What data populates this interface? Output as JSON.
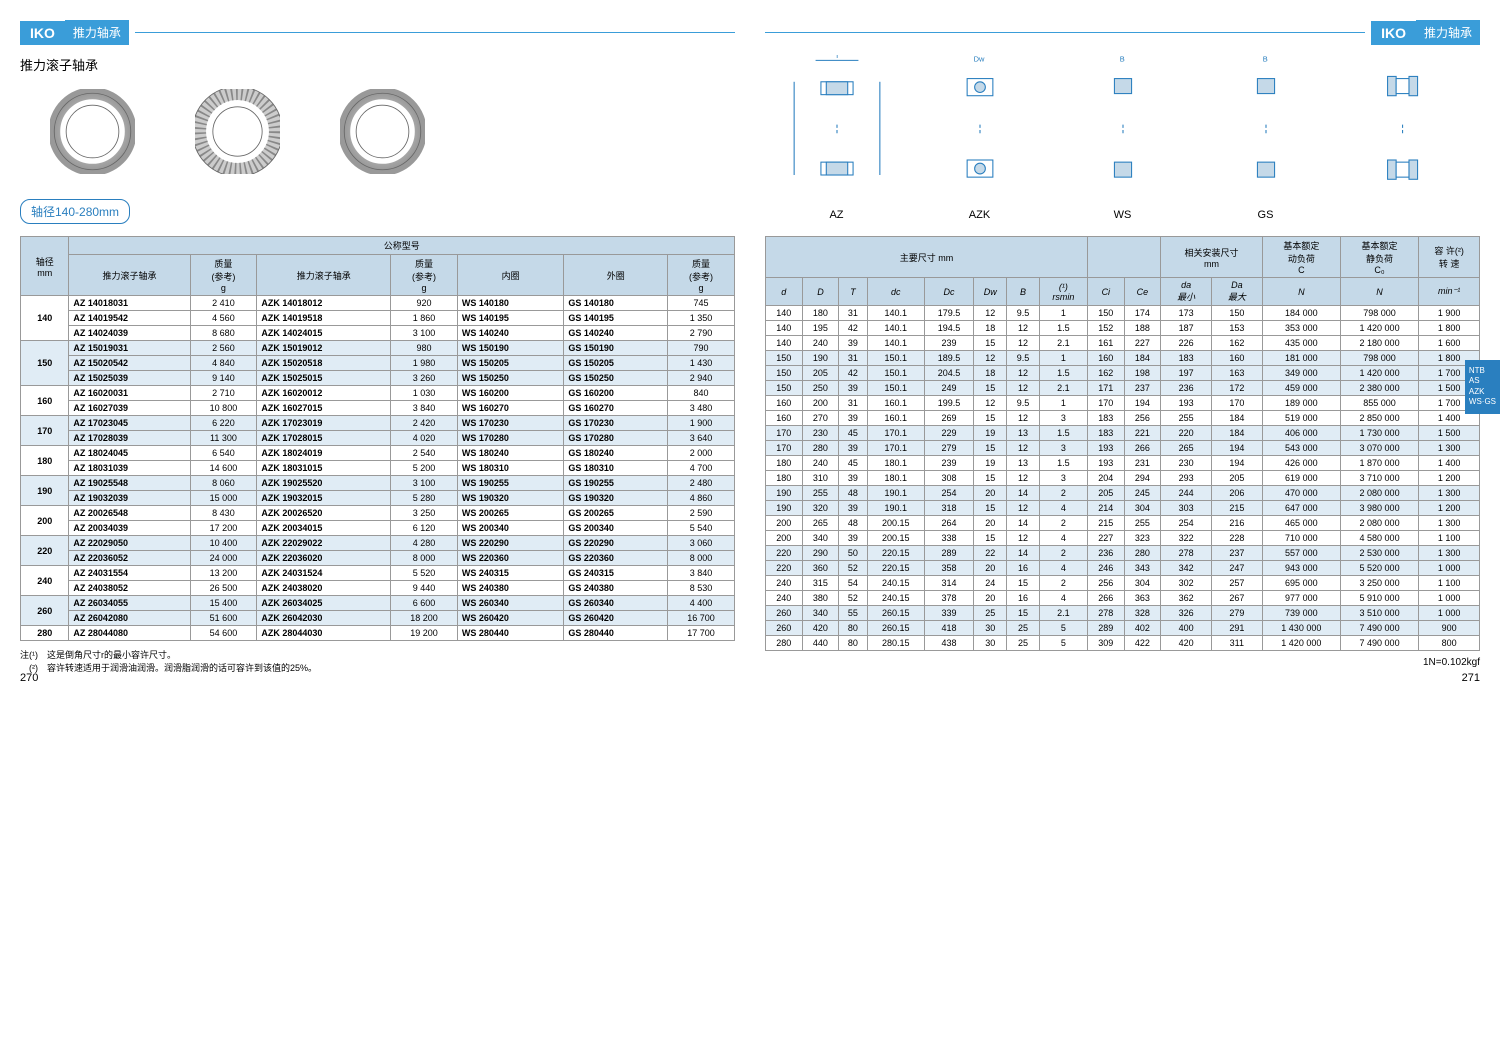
{
  "brand": "IKO",
  "header_title": "推力轴承",
  "left_subtitle": "推力滚子轴承",
  "shaft_range_label": "轴径140-280mm",
  "left_table": {
    "header_top": "公称型号",
    "columns": [
      "轴径\nmm",
      "推力滚子轴承",
      "质量\n(参考)\ng",
      "推力滚子轴承",
      "质量\n(参考)\ng",
      "内圈",
      "外圈",
      "质量\n(参考)\ng"
    ],
    "groups": [
      {
        "shaft": "140",
        "rows": [
          [
            "AZ 14018031",
            "2 410",
            "AZK 14018012",
            "920",
            "WS 140180",
            "GS 140180",
            "745"
          ],
          [
            "AZ 14019542",
            "4 560",
            "AZK 14019518",
            "1 860",
            "WS 140195",
            "GS 140195",
            "1 350"
          ],
          [
            "AZ 14024039",
            "8 680",
            "AZK 14024015",
            "3 100",
            "WS 140240",
            "GS 140240",
            "2 790"
          ]
        ]
      },
      {
        "shaft": "150",
        "rows": [
          [
            "AZ 15019031",
            "2 560",
            "AZK 15019012",
            "980",
            "WS 150190",
            "GS 150190",
            "790"
          ],
          [
            "AZ 15020542",
            "4 840",
            "AZK 15020518",
            "1 980",
            "WS 150205",
            "GS 150205",
            "1 430"
          ],
          [
            "AZ 15025039",
            "9 140",
            "AZK 15025015",
            "3 260",
            "WS 150250",
            "GS 150250",
            "2 940"
          ]
        ]
      },
      {
        "shaft": "160",
        "rows": [
          [
            "AZ 16020031",
            "2 710",
            "AZK 16020012",
            "1 030",
            "WS 160200",
            "GS 160200",
            "840"
          ],
          [
            "AZ 16027039",
            "10 800",
            "AZK 16027015",
            "3 840",
            "WS 160270",
            "GS 160270",
            "3 480"
          ]
        ]
      },
      {
        "shaft": "170",
        "rows": [
          [
            "AZ 17023045",
            "6 220",
            "AZK 17023019",
            "2 420",
            "WS 170230",
            "GS 170230",
            "1 900"
          ],
          [
            "AZ 17028039",
            "11 300",
            "AZK 17028015",
            "4 020",
            "WS 170280",
            "GS 170280",
            "3 640"
          ]
        ]
      },
      {
        "shaft": "180",
        "rows": [
          [
            "AZ 18024045",
            "6 540",
            "AZK 18024019",
            "2 540",
            "WS 180240",
            "GS 180240",
            "2 000"
          ],
          [
            "AZ 18031039",
            "14 600",
            "AZK 18031015",
            "5 200",
            "WS 180310",
            "GS 180310",
            "4 700"
          ]
        ]
      },
      {
        "shaft": "190",
        "rows": [
          [
            "AZ 19025548",
            "8 060",
            "AZK 19025520",
            "3 100",
            "WS 190255",
            "GS 190255",
            "2 480"
          ],
          [
            "AZ 19032039",
            "15 000",
            "AZK 19032015",
            "5 280",
            "WS 190320",
            "GS 190320",
            "4 860"
          ]
        ]
      },
      {
        "shaft": "200",
        "rows": [
          [
            "AZ 20026548",
            "8 430",
            "AZK 20026520",
            "3 250",
            "WS 200265",
            "GS 200265",
            "2 590"
          ],
          [
            "AZ 20034039",
            "17 200",
            "AZK 20034015",
            "6 120",
            "WS 200340",
            "GS 200340",
            "5 540"
          ]
        ]
      },
      {
        "shaft": "220",
        "rows": [
          [
            "AZ 22029050",
            "10 400",
            "AZK 22029022",
            "4 280",
            "WS 220290",
            "GS 220290",
            "3 060"
          ],
          [
            "AZ 22036052",
            "24 000",
            "AZK 22036020",
            "8 000",
            "WS 220360",
            "GS 220360",
            "8 000"
          ]
        ]
      },
      {
        "shaft": "240",
        "rows": [
          [
            "AZ 24031554",
            "13 200",
            "AZK 24031524",
            "5 520",
            "WS 240315",
            "GS 240315",
            "3 840"
          ],
          [
            "AZ 24038052",
            "26 500",
            "AZK 24038020",
            "9 440",
            "WS 240380",
            "GS 240380",
            "8 530"
          ]
        ]
      },
      {
        "shaft": "260",
        "rows": [
          [
            "AZ 26034055",
            "15 400",
            "AZK 26034025",
            "6 600",
            "WS 260340",
            "GS 260340",
            "4 400"
          ],
          [
            "AZ 26042080",
            "51 600",
            "AZK 26042030",
            "18 200",
            "WS 260420",
            "GS 260420",
            "16 700"
          ]
        ]
      },
      {
        "shaft": "280",
        "rows": [
          [
            "AZ 28044080",
            "54 600",
            "AZK 28044030",
            "19 200",
            "WS 280440",
            "GS 280440",
            "17 700"
          ]
        ]
      }
    ]
  },
  "footnote1_label": "注(¹)",
  "footnote1_text": "这是倒角尺寸r的最小容许尺寸。",
  "footnote2_label": "(²)",
  "footnote2_text": "容许转速适用于润滑油润滑。润滑脂润滑的话可容许到该值的25%。",
  "page_left": "270",
  "page_right": "271",
  "diagram_labels": [
    "AZ",
    "AZK",
    "WS",
    "GS",
    ""
  ],
  "right_table": {
    "header_dim": "主要尺寸  mm",
    "header_mount": "相关安装尺寸\nmm",
    "header_dyn": "基本额定\n动负荷\nC",
    "header_stat": "基本额定\n静负荷\nC₀",
    "header_speed": "容 许(²)\n转 速",
    "sub_cols": [
      "d",
      "D",
      "T",
      "dc",
      "Dc",
      "Dw",
      "B",
      "(¹)\nrsmin",
      "Ci",
      "Ce",
      "da\n最小",
      "Da\n最大",
      "N",
      "N",
      "min⁻¹"
    ],
    "groups": [
      [
        [
          "140",
          "180",
          "31",
          "140.1",
          "179.5",
          "12",
          "9.5",
          "1",
          "150",
          "174",
          "173",
          "150",
          "184 000",
          "798 000",
          "1 900"
        ],
        [
          "140",
          "195",
          "42",
          "140.1",
          "194.5",
          "18",
          "12",
          "1.5",
          "152",
          "188",
          "187",
          "153",
          "353 000",
          "1 420 000",
          "1 800"
        ],
        [
          "140",
          "240",
          "39",
          "140.1",
          "239",
          "15",
          "12",
          "2.1",
          "161",
          "227",
          "226",
          "162",
          "435 000",
          "2 180 000",
          "1 600"
        ]
      ],
      [
        [
          "150",
          "190",
          "31",
          "150.1",
          "189.5",
          "12",
          "9.5",
          "1",
          "160",
          "184",
          "183",
          "160",
          "181 000",
          "798 000",
          "1 800"
        ],
        [
          "150",
          "205",
          "42",
          "150.1",
          "204.5",
          "18",
          "12",
          "1.5",
          "162",
          "198",
          "197",
          "163",
          "349 000",
          "1 420 000",
          "1 700"
        ],
        [
          "150",
          "250",
          "39",
          "150.1",
          "249",
          "15",
          "12",
          "2.1",
          "171",
          "237",
          "236",
          "172",
          "459 000",
          "2 380 000",
          "1 500"
        ]
      ],
      [
        [
          "160",
          "200",
          "31",
          "160.1",
          "199.5",
          "12",
          "9.5",
          "1",
          "170",
          "194",
          "193",
          "170",
          "189 000",
          "855 000",
          "1 700"
        ],
        [
          "160",
          "270",
          "39",
          "160.1",
          "269",
          "15",
          "12",
          "3",
          "183",
          "256",
          "255",
          "184",
          "519 000",
          "2 850 000",
          "1 400"
        ]
      ],
      [
        [
          "170",
          "230",
          "45",
          "170.1",
          "229",
          "19",
          "13",
          "1.5",
          "183",
          "221",
          "220",
          "184",
          "406 000",
          "1 730 000",
          "1 500"
        ],
        [
          "170",
          "280",
          "39",
          "170.1",
          "279",
          "15",
          "12",
          "3",
          "193",
          "266",
          "265",
          "194",
          "543 000",
          "3 070 000",
          "1 300"
        ]
      ],
      [
        [
          "180",
          "240",
          "45",
          "180.1",
          "239",
          "19",
          "13",
          "1.5",
          "193",
          "231",
          "230",
          "194",
          "426 000",
          "1 870 000",
          "1 400"
        ],
        [
          "180",
          "310",
          "39",
          "180.1",
          "308",
          "15",
          "12",
          "3",
          "204",
          "294",
          "293",
          "205",
          "619 000",
          "3 710 000",
          "1 200"
        ]
      ],
      [
        [
          "190",
          "255",
          "48",
          "190.1",
          "254",
          "20",
          "14",
          "2",
          "205",
          "245",
          "244",
          "206",
          "470 000",
          "2 080 000",
          "1 300"
        ],
        [
          "190",
          "320",
          "39",
          "190.1",
          "318",
          "15",
          "12",
          "4",
          "214",
          "304",
          "303",
          "215",
          "647 000",
          "3 980 000",
          "1 200"
        ]
      ],
      [
        [
          "200",
          "265",
          "48",
          "200.15",
          "264",
          "20",
          "14",
          "2",
          "215",
          "255",
          "254",
          "216",
          "465 000",
          "2 080 000",
          "1 300"
        ],
        [
          "200",
          "340",
          "39",
          "200.15",
          "338",
          "15",
          "12",
          "4",
          "227",
          "323",
          "322",
          "228",
          "710 000",
          "4 580 000",
          "1 100"
        ]
      ],
      [
        [
          "220",
          "290",
          "50",
          "220.15",
          "289",
          "22",
          "14",
          "2",
          "236",
          "280",
          "278",
          "237",
          "557 000",
          "2 530 000",
          "1 300"
        ],
        [
          "220",
          "360",
          "52",
          "220.15",
          "358",
          "20",
          "16",
          "4",
          "246",
          "343",
          "342",
          "247",
          "943 000",
          "5 520 000",
          "1 000"
        ]
      ],
      [
        [
          "240",
          "315",
          "54",
          "240.15",
          "314",
          "24",
          "15",
          "2",
          "256",
          "304",
          "302",
          "257",
          "695 000",
          "3 250 000",
          "1 100"
        ],
        [
          "240",
          "380",
          "52",
          "240.15",
          "378",
          "20",
          "16",
          "4",
          "266",
          "363",
          "362",
          "267",
          "977 000",
          "5 910 000",
          "1 000"
        ]
      ],
      [
        [
          "260",
          "340",
          "55",
          "260.15",
          "339",
          "25",
          "15",
          "2.1",
          "278",
          "328",
          "326",
          "279",
          "739 000",
          "3 510 000",
          "1 000"
        ],
        [
          "260",
          "420",
          "80",
          "260.15",
          "418",
          "30",
          "25",
          "5",
          "289",
          "402",
          "400",
          "291",
          "1 430 000",
          "7 490 000",
          "900"
        ]
      ],
      [
        [
          "280",
          "440",
          "80",
          "280.15",
          "438",
          "30",
          "25",
          "5",
          "309",
          "422",
          "420",
          "311",
          "1 420 000",
          "7 490 000",
          "800"
        ]
      ]
    ]
  },
  "side_tabs": "NTB\nAS\nAZK\nWS·GS",
  "conversion_note": "1N=0.102kgf"
}
